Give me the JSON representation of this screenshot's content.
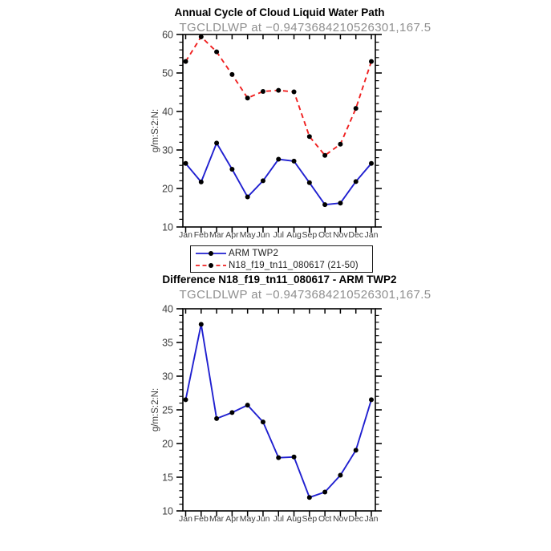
{
  "page": {
    "background": "#ffffff"
  },
  "colors": {
    "axis": "#000000",
    "title": "#000000",
    "subtitle": "#8f8f8f",
    "tick_label": "#3d3d3d",
    "legend_text": "#1c1c1c",
    "arm_blue": "#2020d0",
    "model_red": "#f02020",
    "marker_black": "#000000"
  },
  "legend": {
    "entries": [
      {
        "label": "ARM TWP2",
        "color": "#2020d0",
        "style": "solid",
        "marker": "filled-circle"
      },
      {
        "label": "N18_f19_tn11_080617 (21-50)",
        "color": "#f02020",
        "style": "dashed",
        "marker": "filled-circle"
      }
    ]
  },
  "chart_data": [
    {
      "type": "line",
      "title": "Annual Cycle of Cloud Liquid Water Path",
      "subtitle": "TGCLDLWP at −0.9473684210526301,167.5",
      "xlabel": "",
      "ylabel": "g/m:S:2:N:",
      "categories": [
        "Jan",
        "Feb",
        "Mar",
        "Apr",
        "May",
        "Jun",
        "Jul",
        "Aug",
        "Sep",
        "Oct",
        "Nov",
        "Dec",
        "Jan"
      ],
      "ylim": [
        10,
        60
      ],
      "yticks_major": [
        10,
        20,
        30,
        40,
        50,
        60
      ],
      "ytick_minor_step": 2,
      "grid": false,
      "legend_position": "below",
      "series": [
        {
          "name": "ARM TWP2",
          "color": "#2020d0",
          "style": "solid",
          "marker": "filled-circle",
          "marker_color": "#000000",
          "values": [
            26.5,
            21.7,
            31.8,
            25.0,
            17.8,
            22.0,
            27.6,
            27.1,
            21.5,
            15.8,
            16.2,
            21.8,
            26.5
          ]
        },
        {
          "name": "N18_f19_tn11_080617 (21-50)",
          "color": "#f02020",
          "style": "dashed",
          "marker": "filled-circle",
          "marker_color": "#000000",
          "values": [
            53.0,
            59.4,
            55.5,
            49.6,
            43.5,
            45.2,
            45.5,
            45.1,
            33.5,
            28.6,
            31.5,
            40.8,
            53.0
          ]
        }
      ]
    },
    {
      "type": "line",
      "title": "Difference N18_f19_tn11_080617 - ARM TWP2",
      "subtitle": "TGCLDLWP at −0.9473684210526301,167.5",
      "xlabel": "",
      "ylabel": "g/m:S:2:N:",
      "categories": [
        "Jan",
        "Feb",
        "Mar",
        "Apr",
        "May",
        "Jun",
        "Jul",
        "Aug",
        "Sep",
        "Oct",
        "Nov",
        "Dec",
        "Jan"
      ],
      "ylim": [
        10,
        40
      ],
      "yticks_major": [
        10,
        15,
        20,
        25,
        30,
        35,
        40
      ],
      "ytick_minor_step": 1,
      "grid": false,
      "series": [
        {
          "name": "Difference N18_f19_tn11_080617 - ARM TWP2",
          "color": "#2020d0",
          "style": "solid",
          "marker": "filled-circle",
          "marker_color": "#000000",
          "values": [
            26.5,
            37.7,
            23.7,
            24.6,
            25.7,
            23.2,
            17.9,
            18.0,
            12.0,
            12.8,
            15.3,
            19.0,
            26.5
          ]
        }
      ]
    }
  ]
}
